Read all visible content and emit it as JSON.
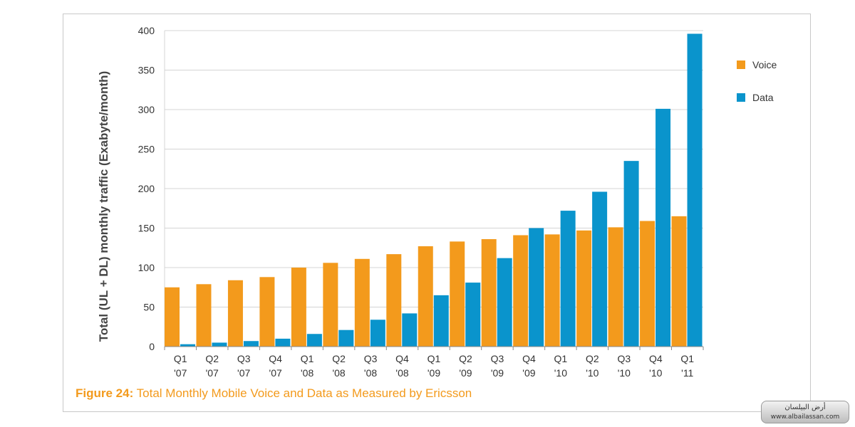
{
  "chart_data": {
    "type": "bar",
    "ylabel": "Total (UL + DL) monthly traffic (Exabyte/month)",
    "xlabel": "",
    "ylim": [
      0,
      400
    ],
    "yticks": [
      0,
      50,
      100,
      150,
      200,
      250,
      300,
      350,
      400
    ],
    "grid": true,
    "legend_position": "top-right",
    "categories": [
      [
        "Q1",
        "'07"
      ],
      [
        "Q2",
        "'07"
      ],
      [
        "Q3",
        "'07"
      ],
      [
        "Q4",
        "'07"
      ],
      [
        "Q1",
        "'08"
      ],
      [
        "Q2",
        "'08"
      ],
      [
        "Q3",
        "'08"
      ],
      [
        "Q4",
        "'08"
      ],
      [
        "Q1",
        "'09"
      ],
      [
        "Q2",
        "'09"
      ],
      [
        "Q3",
        "'09"
      ],
      [
        "Q4",
        "'09"
      ],
      [
        "Q1",
        "'10"
      ],
      [
        "Q2",
        "'10"
      ],
      [
        "Q3",
        "'10"
      ],
      [
        "Q4",
        "'10"
      ],
      [
        "Q1",
        "'11"
      ]
    ],
    "series": [
      {
        "name": "Voice",
        "color": "#f39a1c",
        "values": [
          75,
          79,
          84,
          88,
          100,
          106,
          111,
          117,
          127,
          133,
          136,
          141,
          142,
          147,
          151,
          159,
          165
        ]
      },
      {
        "name": "Data",
        "color": "#0a94cc",
        "values": [
          3,
          5,
          7,
          10,
          16,
          21,
          34,
          42,
          65,
          81,
          112,
          150,
          172,
          196,
          235,
          301,
          396
        ]
      }
    ]
  },
  "caption": {
    "figure_label": "Figure 24:",
    "text": " Total Monthly Mobile Voice and Data as Measured by Ericsson"
  },
  "watermark": {
    "line1": "أرض البيلسان",
    "line2": "www.albailassan.com"
  }
}
